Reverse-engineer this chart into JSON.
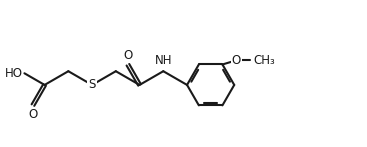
{
  "background_color": "#ffffff",
  "line_color": "#1a1a1a",
  "line_width": 1.5,
  "font_size": 8.5,
  "figsize": [
    3.67,
    1.47
  ],
  "dpi": 100,
  "xlim": [
    0.0,
    9.5
  ],
  "ylim": [
    0.5,
    4.2
  ]
}
